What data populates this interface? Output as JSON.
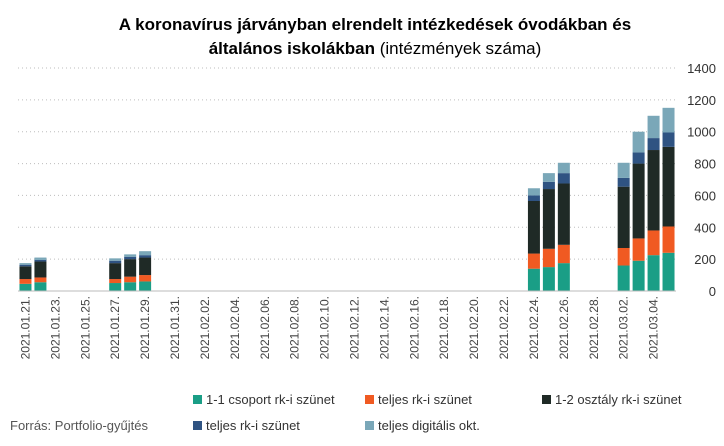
{
  "chart_data": {
    "type": "bar",
    "stacked": true,
    "title_bold_line1": "A koronavírus járványban elrendelt intézkedések óvodákban és",
    "title_bold_line2": "általános iskolákban",
    "title_normal_line2": " (intézmények száma)",
    "source": "Forrás: Portfolio-gyűjtés",
    "ylim": [
      0,
      1400
    ],
    "yticks": [
      0,
      200,
      400,
      600,
      800,
      1000,
      1200,
      1400
    ],
    "y_axis_position": "right",
    "grid": "horizontal-dotted",
    "legend_placement": "bottom",
    "dates": [
      "2021.01.21.",
      "2021.01.22.",
      "2021.01.23.",
      "2021.01.24.",
      "2021.01.25.",
      "2021.01.26.",
      "2021.01.27.",
      "2021.01.28.",
      "2021.01.29.",
      "2021.01.30.",
      "2021.01.31.",
      "2021.02.01.",
      "2021.02.02.",
      "2021.02.03.",
      "2021.02.04.",
      "2021.02.05.",
      "2021.02.06.",
      "2021.02.07.",
      "2021.02.08.",
      "2021.02.09.",
      "2021.02.10.",
      "2021.02.11.",
      "2021.02.12.",
      "2021.02.13.",
      "2021.02.14.",
      "2021.02.15.",
      "2021.02.16.",
      "2021.02.17.",
      "2021.02.18.",
      "2021.02.19.",
      "2021.02.20.",
      "2021.02.21.",
      "2021.02.22.",
      "2021.02.23.",
      "2021.02.24.",
      "2021.02.25.",
      "2021.02.26.",
      "2021.02.27.",
      "2021.02.28.",
      "2021.03.01.",
      "2021.03.02.",
      "2021.03.03.",
      "2021.03.04.",
      "2021.03.05."
    ],
    "tick_labels": [
      "2021.01.21.",
      "2021.01.23.",
      "2021.01.25.",
      "2021.01.27.",
      "2021.01.29.",
      "2021.01.31.",
      "2021.02.02.",
      "2021.02.04.",
      "2021.02.06.",
      "2021.02.08.",
      "2021.02.10.",
      "2021.02.12.",
      "2021.02.14.",
      "2021.02.16.",
      "2021.02.18.",
      "2021.02.20.",
      "2021.02.22.",
      "2021.02.24.",
      "2021.02.26.",
      "2021.02.28.",
      "2021.03.02.",
      "2021.03.04."
    ],
    "series": [
      {
        "name": "1-1 csoport rk-i szünet",
        "color": "#1a9e86",
        "values": [
          45,
          55,
          0,
          0,
          0,
          0,
          50,
          55,
          60,
          0,
          0,
          0,
          0,
          0,
          0,
          0,
          0,
          0,
          0,
          0,
          0,
          0,
          0,
          0,
          0,
          0,
          0,
          0,
          0,
          0,
          0,
          0,
          0,
          0,
          140,
          150,
          175,
          0,
          0,
          0,
          160,
          190,
          225,
          240
        ]
      },
      {
        "name": "teljes rk-i szünet",
        "color": "#f05a22",
        "values": [
          30,
          30,
          0,
          0,
          0,
          0,
          25,
          35,
          40,
          0,
          0,
          0,
          0,
          0,
          0,
          0,
          0,
          0,
          0,
          0,
          0,
          0,
          0,
          0,
          0,
          0,
          0,
          0,
          0,
          0,
          0,
          0,
          0,
          0,
          95,
          115,
          115,
          0,
          0,
          0,
          110,
          140,
          155,
          165
        ]
      },
      {
        "name": "1-2 osztály rk-i szünet",
        "color": "#1f2a26",
        "values": [
          80,
          100,
          0,
          0,
          0,
          0,
          100,
          110,
          110,
          0,
          0,
          0,
          0,
          0,
          0,
          0,
          0,
          0,
          0,
          0,
          0,
          0,
          0,
          0,
          0,
          0,
          0,
          0,
          0,
          0,
          0,
          0,
          0,
          0,
          330,
          375,
          385,
          0,
          0,
          0,
          385,
          470,
          505,
          500
        ]
      },
      {
        "name": "teljes rk-i szünet",
        "color": "#2f5382",
        "values": [
          10,
          10,
          0,
          0,
          0,
          0,
          15,
          15,
          15,
          0,
          0,
          0,
          0,
          0,
          0,
          0,
          0,
          0,
          0,
          0,
          0,
          0,
          0,
          0,
          0,
          0,
          0,
          0,
          0,
          0,
          0,
          0,
          0,
          0,
          35,
          45,
          65,
          0,
          0,
          0,
          55,
          70,
          75,
          90
        ]
      },
      {
        "name": "teljes digitális okt.",
        "color": "#7aa7b8",
        "values": [
          10,
          15,
          0,
          0,
          0,
          0,
          15,
          15,
          25,
          0,
          0,
          0,
          0,
          0,
          0,
          0,
          0,
          0,
          0,
          0,
          0,
          0,
          0,
          0,
          0,
          0,
          0,
          0,
          0,
          0,
          0,
          0,
          0,
          0,
          45,
          55,
          65,
          0,
          0,
          0,
          95,
          130,
          140,
          155
        ]
      }
    ]
  }
}
